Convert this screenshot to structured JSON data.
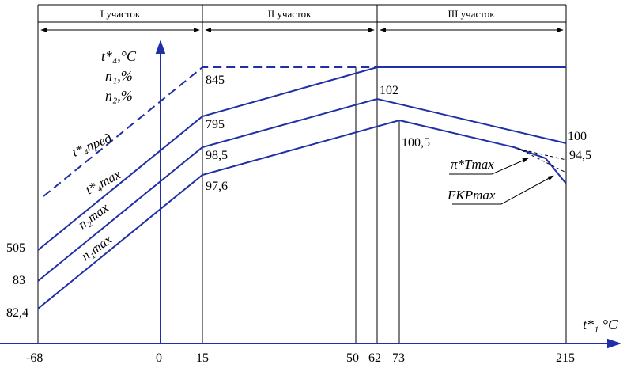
{
  "sections": [
    {
      "id": "s1",
      "label": "I участок"
    },
    {
      "id": "s2",
      "label": "II участок"
    },
    {
      "id": "s3",
      "label": "III участок"
    }
  ],
  "y_axis": {
    "lines": [
      "t*₄,°C",
      "n₁,%",
      "n₂,%"
    ]
  },
  "x_axis": {
    "label": "t*₁ °C"
  },
  "x_ticks": [
    "-68",
    "0",
    "15",
    "50",
    "62",
    "73",
    "215"
  ],
  "y_ticks": [
    "505",
    "83",
    "82,4"
  ],
  "value_labels": [
    "845",
    "795",
    "98,5",
    "97,6",
    "102",
    "100,5",
    "100",
    "94,5"
  ],
  "curve_labels": [
    "t*₄пред",
    "t*₄max",
    "n₂max",
    "n₁max",
    "π*Tmax",
    "FKPmax"
  ],
  "colors": {
    "axis": "#1f2fa6",
    "curve": "#1f2fa6",
    "frame": "#000000"
  }
}
